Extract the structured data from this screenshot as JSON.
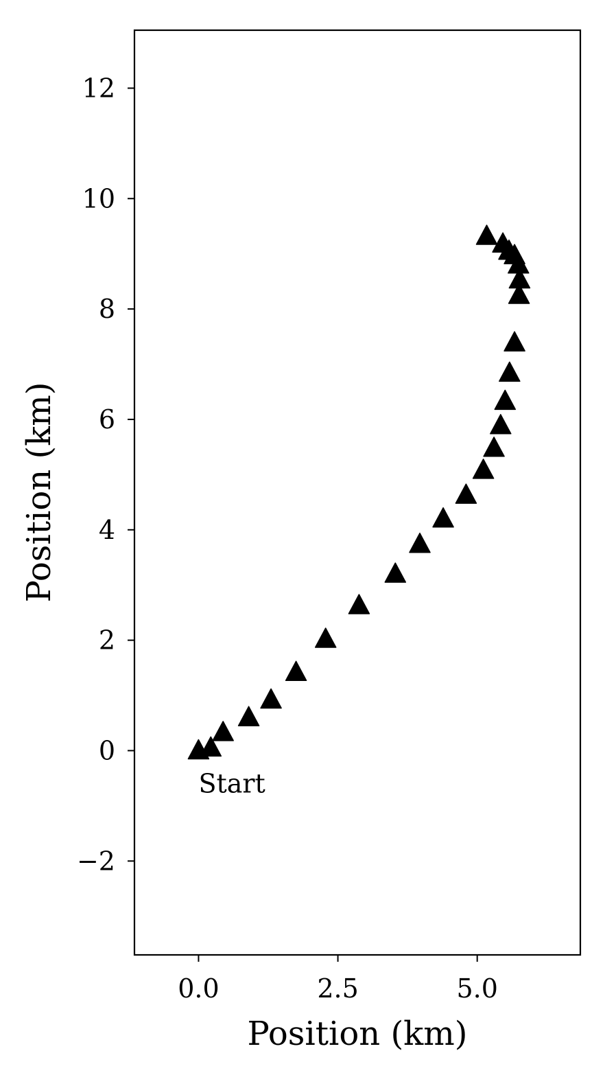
{
  "chart_data": {
    "type": "scatter",
    "title": "",
    "xlabel": "Position (km)",
    "ylabel": "Position (km)",
    "xlim": [
      -1.15,
      6.85
    ],
    "ylim": [
      -3.7,
      13.05
    ],
    "xticks": [
      0.0,
      2.5,
      5.0
    ],
    "xtick_labels": [
      "0.0",
      "2.5",
      "5.0"
    ],
    "yticks": [
      -2,
      0,
      2,
      4,
      6,
      8,
      10,
      12
    ],
    "ytick_labels": [
      "−2",
      "0",
      "2",
      "4",
      "6",
      "8",
      "10",
      "12"
    ],
    "grid": false,
    "legend": "none",
    "marker": "triangle-up",
    "marker_color": "#000000",
    "series": [
      {
        "x": [
          0.0,
          0.22,
          0.44,
          0.9,
          1.3,
          1.75,
          2.28,
          2.88,
          3.53,
          3.97,
          4.39,
          4.8,
          5.11,
          5.3,
          5.42,
          5.5,
          5.58,
          5.67,
          5.75,
          5.76,
          5.74,
          5.67,
          5.57,
          5.46,
          5.17
        ],
        "y": [
          0.0,
          0.05,
          0.33,
          0.6,
          0.92,
          1.42,
          2.02,
          2.63,
          3.2,
          3.74,
          4.2,
          4.63,
          5.08,
          5.48,
          5.89,
          6.33,
          6.84,
          7.39,
          8.25,
          8.53,
          8.8,
          8.97,
          9.05,
          9.18,
          9.32
        ]
      }
    ],
    "annotations": [
      {
        "text": "Start",
        "x": 0.0,
        "y": -0.6
      }
    ]
  }
}
